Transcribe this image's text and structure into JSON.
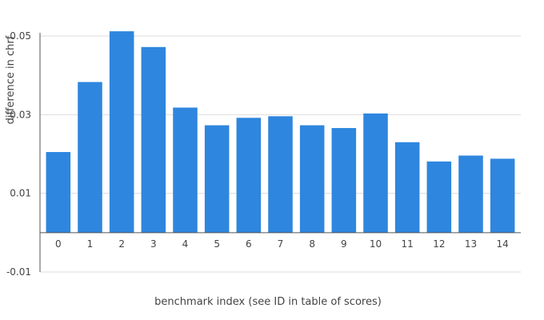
{
  "chart_data": {
    "type": "bar",
    "xlabel": "benchmark index (see ID in table of scores)",
    "ylabel": "difference in chrf",
    "categories": [
      "0",
      "1",
      "2",
      "3",
      "4",
      "5",
      "6",
      "7",
      "8",
      "9",
      "10",
      "11",
      "12",
      "13",
      "14"
    ],
    "values": [
      0.0205,
      0.0383,
      0.0512,
      0.0472,
      0.0318,
      0.0273,
      0.0292,
      0.0296,
      0.0273,
      0.0266,
      0.0303,
      0.023,
      0.0181,
      0.0196,
      0.0188
    ],
    "ylim": [
      -0.01,
      0.05
    ],
    "yticks": [
      -0.01,
      0.01,
      0.03,
      0.05
    ],
    "ytick_labels": [
      "-0.01",
      "0.01",
      "0.03",
      "0.05"
    ],
    "grid": true,
    "legend": "none",
    "bar_color": "#2e86de"
  }
}
